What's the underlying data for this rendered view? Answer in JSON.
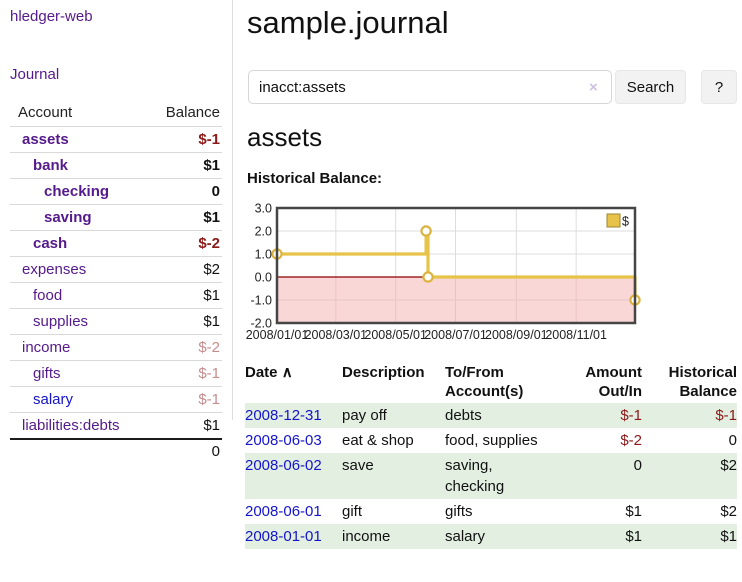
{
  "app": {
    "title": "hledger-web",
    "nav_journal": "Journal"
  },
  "sidebar": {
    "accounts_header": {
      "account": "Account",
      "balance": "Balance"
    },
    "accounts": [
      {
        "name": "assets",
        "level": 0,
        "bold": true,
        "link_color": "purple",
        "balance": "$-1",
        "balance_style": "negstrong"
      },
      {
        "name": "bank",
        "level": 1,
        "bold": true,
        "link_color": "purple",
        "balance": "$1",
        "balance_style": "strong"
      },
      {
        "name": "checking",
        "level": 2,
        "bold": true,
        "link_color": "purple",
        "balance": "0",
        "balance_style": "strong"
      },
      {
        "name": "saving",
        "level": 2,
        "bold": true,
        "link_color": "purple",
        "balance": "$1",
        "balance_style": "strong"
      },
      {
        "name": "cash",
        "level": 1,
        "bold": true,
        "link_color": "purple",
        "balance": "$-2",
        "balance_style": "negstrong"
      },
      {
        "name": "expenses",
        "level": 0,
        "bold": false,
        "link_color": "purple",
        "balance": "$2",
        "balance_style": "plain"
      },
      {
        "name": "food",
        "level": 1,
        "bold": false,
        "link_color": "purple",
        "balance": "$1",
        "balance_style": "plain"
      },
      {
        "name": "supplies",
        "level": 1,
        "bold": false,
        "link_color": "purple",
        "balance": "$1",
        "balance_style": "plain"
      },
      {
        "name": "income",
        "level": 0,
        "bold": false,
        "link_color": "purple",
        "balance": "$-2",
        "balance_style": "negmuted"
      },
      {
        "name": "gifts",
        "level": 1,
        "bold": false,
        "link_color": "purple",
        "balance": "$-1",
        "balance_style": "negmuted"
      },
      {
        "name": "salary",
        "level": 1,
        "bold": false,
        "link_color": "blue",
        "balance": "$-1",
        "balance_style": "negmuted"
      },
      {
        "name": "liabilities:debts",
        "level": 0,
        "bold": false,
        "link_color": "purple",
        "balance": "$1",
        "balance_style": "plain"
      }
    ],
    "total": "0"
  },
  "header": {
    "title": "sample.journal"
  },
  "search": {
    "value": "inacct:assets",
    "clear_icon": "×",
    "button": "Search",
    "help_button": "?"
  },
  "account_page": {
    "heading": "assets",
    "chart_label": "Historical Balance:"
  },
  "chart_data": {
    "type": "line",
    "title": "Historical Balance:",
    "step": "after",
    "series": [
      {
        "name": "$",
        "x": [
          "2008-01-01",
          "2008-06-01",
          "2008-06-02",
          "2008-06-03",
          "2008-12-31"
        ],
        "y": [
          1,
          2,
          2,
          0,
          -1
        ]
      }
    ],
    "xrange": [
      "2008-01-01",
      "2008-12-31"
    ],
    "ylim": [
      -2,
      3
    ],
    "yticks": [
      "3.0",
      "2.0",
      "1.0",
      "0.0",
      "-1.0",
      "-2.0"
    ],
    "xticks": [
      "2008/01/01",
      "2008/03/01",
      "2008/05/01",
      "2008/07/01",
      "2008/09/01",
      "2008/11/01"
    ],
    "grid": true,
    "legend": {
      "label": "$",
      "position": "top-right"
    },
    "colors": {
      "series": "#e7c34a",
      "marker_ring": "#dcb33f",
      "negative_region": "rgba(244,166,166,0.45)",
      "zero_line": "#8b0000",
      "gridline": "#dddddd",
      "border": "#454545"
    }
  },
  "transactions": {
    "columns": {
      "date": {
        "label": "Date",
        "sort_icon": "∧"
      },
      "description": {
        "label": "Description"
      },
      "accounts": {
        "line1": "To/From",
        "line2": "Account(s)"
      },
      "amount": {
        "line1": "Amount",
        "line2": "Out/In"
      },
      "balance": {
        "line1": "Historical",
        "line2": "Balance"
      }
    },
    "rows": [
      {
        "date": "2008-12-31",
        "description": "pay off",
        "accounts": "debts",
        "amount": "$-1",
        "amount_neg": true,
        "balance": "$-1",
        "balance_neg": true,
        "shade": true
      },
      {
        "date": "2008-06-03",
        "description": "eat & shop",
        "accounts": "food, supplies",
        "amount": "$-2",
        "amount_neg": true,
        "balance": "0",
        "balance_neg": false,
        "shade": false
      },
      {
        "date": "2008-06-02",
        "description": "save",
        "accounts": "saving, checking",
        "amount": "0",
        "amount_neg": false,
        "balance": "$2",
        "balance_neg": false,
        "shade": true
      },
      {
        "date": "2008-06-01",
        "description": "gift",
        "accounts": "gifts",
        "amount": "$1",
        "amount_neg": false,
        "balance": "$2",
        "balance_neg": false,
        "shade": false
      },
      {
        "date": "2008-01-01",
        "description": "income",
        "accounts": "salary",
        "amount": "$1",
        "amount_neg": false,
        "balance": "$1",
        "balance_neg": false,
        "shade": true
      }
    ]
  },
  "colors": {
    "link_purple": "#551a8b",
    "link_blue": "#1414cc",
    "negative_strong": "#8b1a1a",
    "negative_muted": "#c58c8c",
    "row_stripe_green": "#e2efe1",
    "gold_series": "#e7c34a",
    "divider_gray": "#dddddd"
  }
}
